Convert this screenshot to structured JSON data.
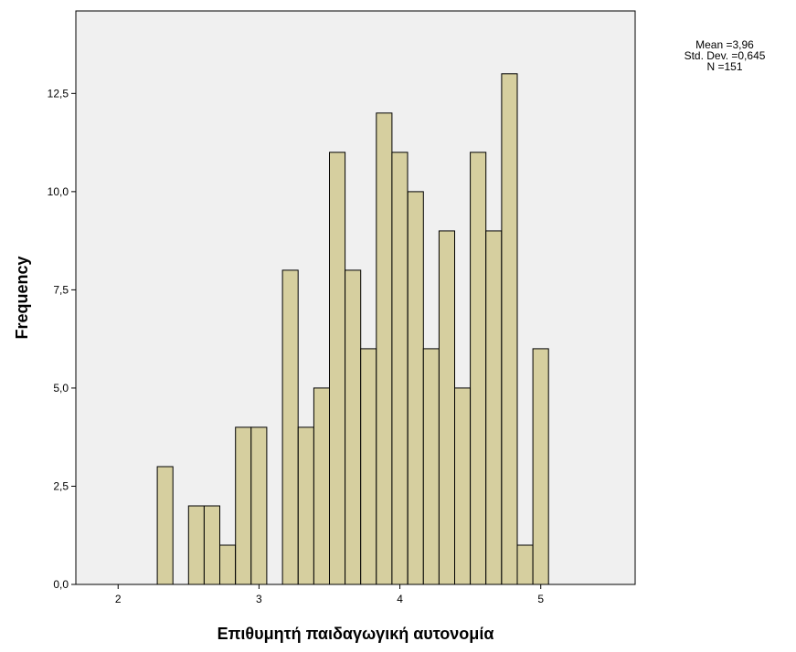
{
  "chart_data": {
    "type": "bar",
    "subtype": "histogram",
    "xlabel": "Επιθυμητή παιδαγωγική αυτονομία",
    "ylabel": "Frequency",
    "xlim": [
      1.7,
      5.67
    ],
    "ylim": [
      0,
      14.6
    ],
    "x_ticks": [
      2,
      3,
      4,
      5
    ],
    "x_tick_labels": [
      "2",
      "3",
      "4",
      "5"
    ],
    "y_ticks": [
      0,
      2.5,
      5,
      7.5,
      10,
      12.5
    ],
    "y_tick_labels": [
      "0,0",
      "2,5",
      "5,0",
      "7,5",
      "10,0",
      "12,5"
    ],
    "bin_width": 0.111,
    "bins": [
      {
        "start": 2.278,
        "value": 3
      },
      {
        "start": 2.5,
        "value": 2
      },
      {
        "start": 2.611,
        "value": 2
      },
      {
        "start": 2.722,
        "value": 1
      },
      {
        "start": 2.833,
        "value": 4
      },
      {
        "start": 2.944,
        "value": 4
      },
      {
        "start": 3.167,
        "value": 8
      },
      {
        "start": 3.278,
        "value": 4
      },
      {
        "start": 3.389,
        "value": 5
      },
      {
        "start": 3.5,
        "value": 11
      },
      {
        "start": 3.611,
        "value": 8
      },
      {
        "start": 3.722,
        "value": 6
      },
      {
        "start": 3.833,
        "value": 12
      },
      {
        "start": 3.944,
        "value": 11
      },
      {
        "start": 4.056,
        "value": 10
      },
      {
        "start": 4.167,
        "value": 6
      },
      {
        "start": 4.278,
        "value": 9
      },
      {
        "start": 4.389,
        "value": 5
      },
      {
        "start": 4.5,
        "value": 11
      },
      {
        "start": 4.611,
        "value": 9
      },
      {
        "start": 4.722,
        "value": 13
      },
      {
        "start": 4.833,
        "value": 1
      },
      {
        "start": 4.944,
        "value": 6
      }
    ],
    "bar_color": "#d6cf9f",
    "bar_edge_color": "#000000",
    "plot_background": "#f0f0f0",
    "grid": false,
    "legend": "none"
  },
  "stats": {
    "mean": "Mean =3,96",
    "std_dev": "Std. Dev. =0,645",
    "n": "N =151"
  }
}
